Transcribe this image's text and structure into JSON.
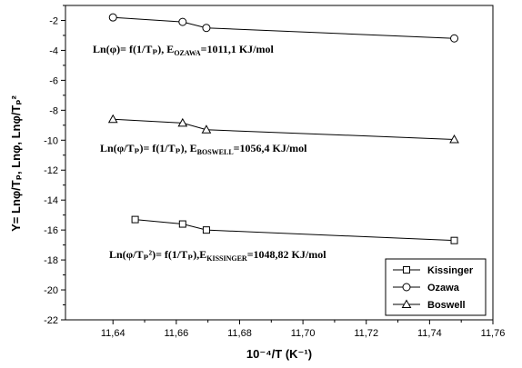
{
  "chart_data": {
    "type": "line",
    "xlabel": "10⁻⁴/T (K⁻¹)",
    "ylabel": "Y= Lnφ/Tₚ, Lnφ, Lnφ/Tₚ²",
    "xlim": [
      11.625,
      11.76
    ],
    "ylim": [
      -22,
      -1
    ],
    "xticks": [
      "11,64",
      "11,66",
      "11,68",
      "11,70",
      "11,72",
      "11,74",
      "11,76"
    ],
    "yticks": [
      "-2",
      "-4",
      "-6",
      "-8",
      "-10",
      "-12",
      "-14",
      "-16",
      "-18",
      "-20",
      "-22"
    ],
    "grid": false,
    "legend_position": "bottom-right",
    "series": [
      {
        "name": "Kissinger",
        "marker": "square",
        "x": [
          11.647,
          11.662,
          11.6695,
          11.7478
        ],
        "y": [
          -15.3,
          -15.6,
          -16.0,
          -16.7
        ]
      },
      {
        "name": "Ozawa",
        "marker": "circle",
        "x": [
          11.64,
          11.662,
          11.6695,
          11.7478
        ],
        "y": [
          -1.8,
          -2.1,
          -2.5,
          -3.2
        ]
      },
      {
        "name": "Boswell",
        "marker": "triangle",
        "x": [
          11.64,
          11.662,
          11.6695,
          11.7478
        ],
        "y": [
          -8.6,
          -8.85,
          -9.3,
          -9.95
        ]
      }
    ],
    "annotations": [
      {
        "id": "ozawa",
        "text": "Ln(φ)= f(1/Tₚ), E",
        "sub": "OZAWA",
        "value": "=1011,1 KJ/mol"
      },
      {
        "id": "boswell",
        "text": "Ln(φ/Tₚ)= f(1/Tₚ), E",
        "sub": "BOSWELL",
        "value": "=1056,4 KJ/mol"
      },
      {
        "id": "kissinger",
        "text": "Ln(φ/Tₚ²)= f(1/Tₚ),E",
        "sub": "KISSINGER",
        "value": "=1048,82 KJ/mol"
      }
    ]
  }
}
